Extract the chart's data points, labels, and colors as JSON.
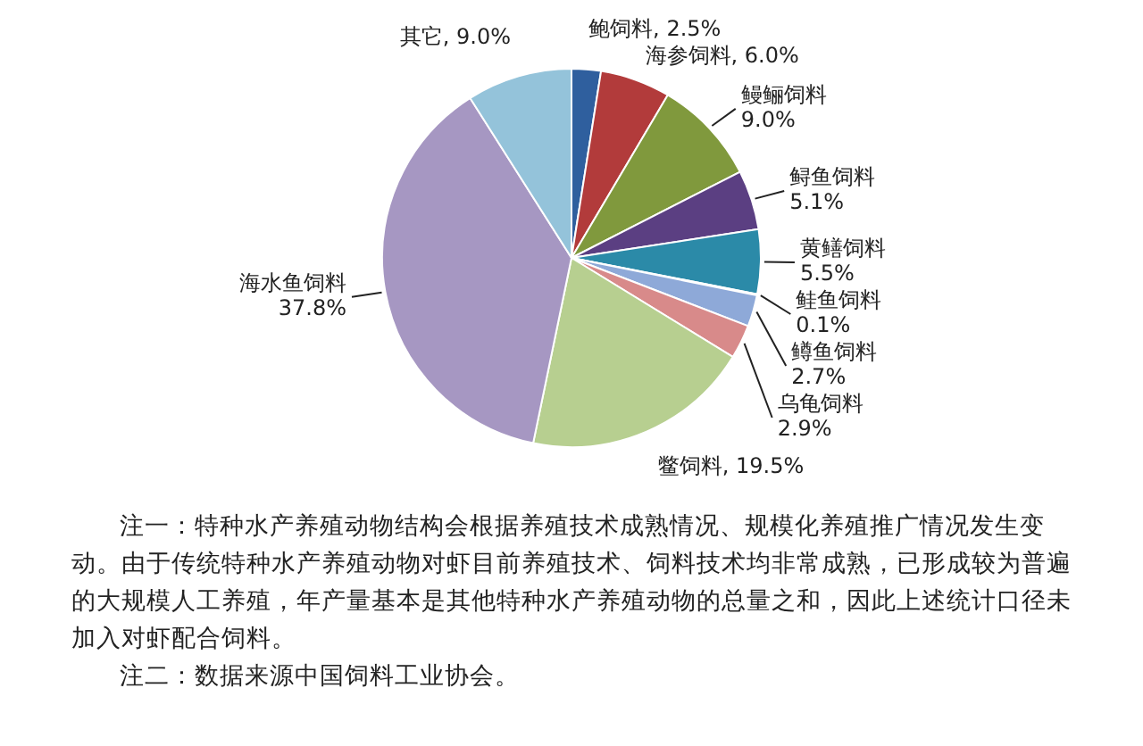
{
  "chart_data": {
    "type": "pie",
    "categories": [
      "鲍饲料",
      "海参饲料",
      "鳗鲡饲料",
      "鲟鱼饲料",
      "黄鳝饲料",
      "鲑鱼饲料",
      "鳟鱼饲料",
      "乌龟饲料",
      "鳖饲料",
      "海水鱼饲料",
      "其它"
    ],
    "values": [
      2.5,
      6.0,
      9.0,
      5.1,
      5.5,
      0.1,
      2.7,
      2.9,
      19.5,
      37.8,
      9.0
    ],
    "value_labels": [
      "2.5%",
      "6.0%",
      "9.0%",
      "5.1%",
      "5.5%",
      "0.1%",
      "2.7%",
      "2.9%",
      "19.5%",
      "37.8%",
      "9.0%"
    ],
    "colors": [
      "#2f5f9e",
      "#b23b3b",
      "#80993d",
      "#5b3f82",
      "#2b8aa8",
      "#d98c3a",
      "#8ea9d8",
      "#d88a8a",
      "#b7cf90",
      "#a697c2",
      "#94c3da"
    ],
    "legend": false,
    "annotations": [
      "注一：特种水产养殖动物结构会根据养殖技术成熟情况、规模化养殖推广情况发生变动。由于传统特种水产养殖动物对虾目前养殖技术、饲料技术均非常成熟，已形成较为普遍的大规模人工养殖，年产量基本是其他特种水产养殖动物的总量之和，因此上述统计口径未加入对虾配合饲料。",
      "注二：数据来源中国饲料工业协会。"
    ]
  }
}
